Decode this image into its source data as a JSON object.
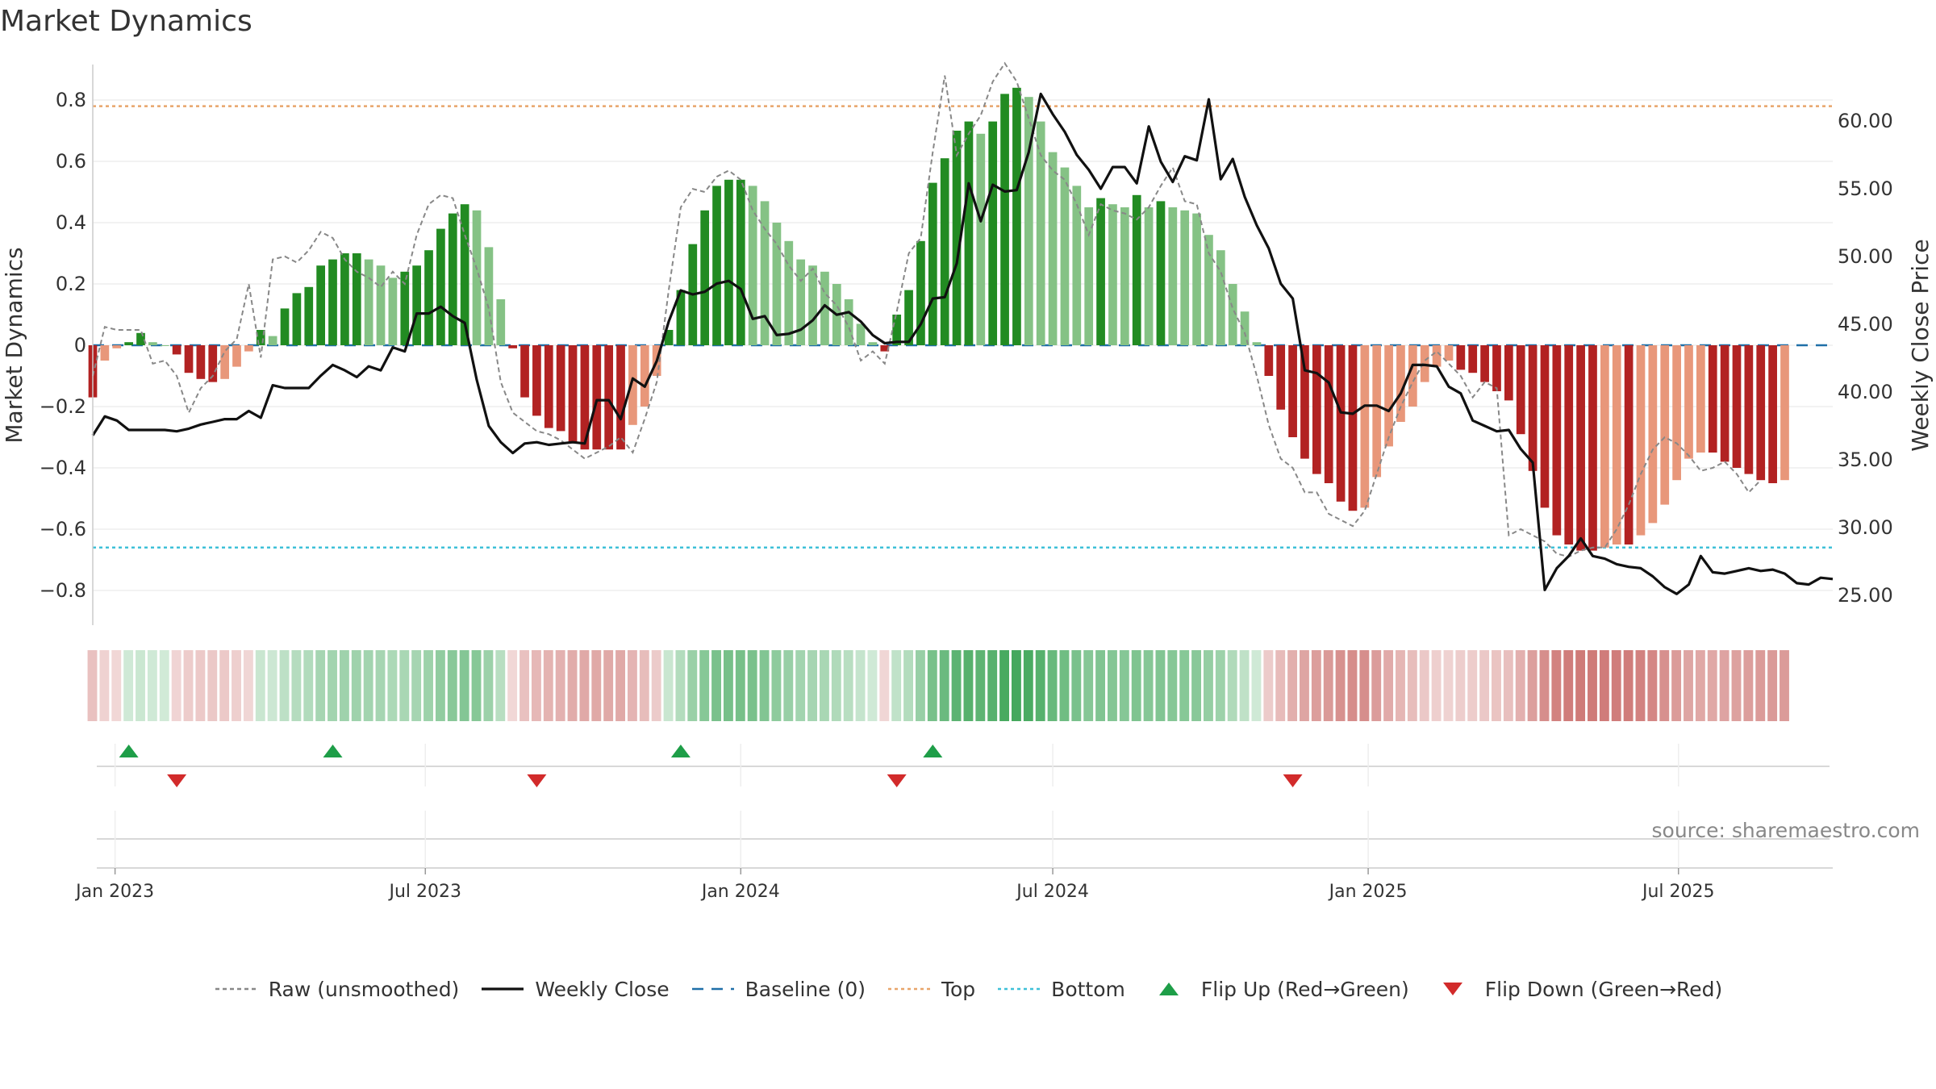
{
  "title": "Market Dynamics",
  "source": "source: sharemaestro.com",
  "colors": {
    "dark_green": "#228B22",
    "light_green": "#85C285",
    "dark_red": "#B22222",
    "light_red": "#E8977A",
    "raw": "#888888",
    "close": "#111111",
    "baseline": "#1F6FA8",
    "top": "#E8A56A",
    "bottom": "#3EC0D8",
    "flip_up": "#1E9E48",
    "flip_down": "#D22B2B"
  },
  "legend": [
    {
      "label": "Raw (unsmoothed)",
      "key": "raw"
    },
    {
      "label": "Weekly Close",
      "key": "close"
    },
    {
      "label": "Baseline (0)",
      "key": "baseline"
    },
    {
      "label": "Top",
      "key": "top"
    },
    {
      "label": "Bottom",
      "key": "bottom"
    },
    {
      "label": "Flip Up (Red→Green)",
      "key": "flip_up"
    },
    {
      "label": "Flip Down (Green→Red)",
      "key": "flip_down"
    }
  ],
  "chart_data": {
    "type": "bar",
    "title": "Market Dynamics",
    "ylabel": "Market Dynamics",
    "y2label": "Weekly Close Price",
    "ylim": [
      -0.9,
      0.92
    ],
    "y2lim": [
      22.0,
      63.0
    ],
    "yticks": [
      -0.8,
      -0.6,
      -0.4,
      -0.2,
      0,
      0.2,
      0.4,
      0.6,
      0.8
    ],
    "ytick_labels": [
      "−0.8",
      "−0.6",
      "−0.4",
      "−0.2",
      "0",
      "0.2",
      "0.4",
      "0.6",
      "0.8"
    ],
    "y2ticks": [
      25,
      30,
      35,
      40,
      45,
      50,
      55,
      60
    ],
    "y2tick_labels": [
      "25.00",
      "30.00",
      "35.00",
      "40.00",
      "45.00",
      "50.00",
      "55.00",
      "60.00"
    ],
    "start_date": "2022-12-19",
    "xlim": [
      "2022-12-19",
      "2025-09-29"
    ],
    "xticks": [
      "2023-01-01",
      "2023-07-01",
      "2024-01-01",
      "2024-07-01",
      "2025-01-01",
      "2025-07-01"
    ],
    "xtick_labels": [
      "Jan 2023",
      "Jul 2023",
      "Jan 2024",
      "Jul 2024",
      "Jan 2025",
      "Jul 2025"
    ],
    "top_line": 0.78,
    "bottom_line": -0.66,
    "baseline": 0,
    "grid": true,
    "legend_position": "bottom-center",
    "weeks": 146,
    "dynamics": [
      -0.17,
      -0.05,
      -0.01,
      0.01,
      0.04,
      0.01,
      0.0,
      -0.03,
      -0.09,
      -0.11,
      -0.12,
      -0.11,
      -0.07,
      -0.02,
      0.05,
      0.03,
      0.12,
      0.17,
      0.19,
      0.26,
      0.28,
      0.3,
      0.3,
      0.28,
      0.26,
      0.22,
      0.24,
      0.26,
      0.31,
      0.38,
      0.43,
      0.46,
      0.44,
      0.32,
      0.15,
      -0.01,
      -0.17,
      -0.23,
      -0.27,
      -0.28,
      -0.32,
      -0.34,
      -0.34,
      -0.34,
      -0.34,
      -0.26,
      -0.2,
      -0.1,
      0.05,
      0.18,
      0.33,
      0.44,
      0.52,
      0.54,
      0.54,
      0.52,
      0.47,
      0.4,
      0.34,
      0.28,
      0.26,
      0.24,
      0.2,
      0.15,
      0.07,
      0.01,
      -0.02,
      0.1,
      0.18,
      0.34,
      0.53,
      0.61,
      0.7,
      0.73,
      0.69,
      0.73,
      0.82,
      0.84,
      0.81,
      0.73,
      0.63,
      0.58,
      0.52,
      0.45,
      0.48,
      0.46,
      0.45,
      0.49,
      0.45,
      0.47,
      0.45,
      0.44,
      0.43,
      0.36,
      0.31,
      0.2,
      0.11,
      0.01,
      -0.1,
      -0.21,
      -0.3,
      -0.37,
      -0.42,
      -0.45,
      -0.51,
      -0.54,
      -0.53,
      -0.43,
      -0.33,
      -0.25,
      -0.2,
      -0.12,
      -0.07,
      -0.05,
      -0.08,
      -0.09,
      -0.12,
      -0.15,
      -0.18,
      -0.29,
      -0.41,
      -0.53,
      -0.62,
      -0.65,
      -0.67,
      -0.67,
      -0.66,
      -0.65,
      -0.65,
      -0.62,
      -0.58,
      -0.52,
      -0.44,
      -0.37,
      -0.35,
      -0.35,
      -0.38,
      -0.4,
      -0.42,
      -0.44,
      -0.45,
      -0.44
    ],
    "raw": [
      -0.1,
      0.06,
      0.05,
      0.05,
      0.05,
      -0.06,
      -0.05,
      -0.1,
      -0.22,
      -0.14,
      -0.1,
      -0.02,
      0.02,
      0.2,
      -0.04,
      0.28,
      0.29,
      0.27,
      0.31,
      0.37,
      0.35,
      0.28,
      0.24,
      0.22,
      0.19,
      0.24,
      0.2,
      0.36,
      0.46,
      0.49,
      0.48,
      0.36,
      0.25,
      0.12,
      -0.12,
      -0.22,
      -0.25,
      -0.28,
      -0.29,
      -0.31,
      -0.34,
      -0.37,
      -0.35,
      -0.33,
      -0.3,
      -0.35,
      -0.24,
      -0.12,
      0.18,
      0.45,
      0.51,
      0.5,
      0.55,
      0.57,
      0.54,
      0.44,
      0.38,
      0.33,
      0.26,
      0.21,
      0.25,
      0.17,
      0.13,
      0.06,
      -0.05,
      -0.02,
      -0.06,
      0.11,
      0.3,
      0.35,
      0.63,
      0.88,
      0.62,
      0.69,
      0.75,
      0.86,
      0.92,
      0.86,
      0.74,
      0.62,
      0.57,
      0.54,
      0.46,
      0.36,
      0.46,
      0.44,
      0.43,
      0.41,
      0.45,
      0.52,
      0.58,
      0.47,
      0.46,
      0.3,
      0.24,
      0.12,
      0.04,
      -0.1,
      -0.26,
      -0.37,
      -0.4,
      -0.48,
      -0.48,
      -0.55,
      -0.57,
      -0.59,
      -0.54,
      -0.42,
      -0.3,
      -0.2,
      -0.12,
      -0.05,
      -0.02,
      -0.06,
      -0.1,
      -0.17,
      -0.12,
      -0.14,
      -0.62,
      -0.6,
      -0.62,
      -0.64,
      -0.68,
      -0.69,
      -0.67,
      -0.66,
      -0.66,
      -0.6,
      -0.52,
      -0.42,
      -0.34,
      -0.3,
      -0.32,
      -0.36,
      -0.41,
      -0.4,
      -0.38,
      -0.42,
      -0.48,
      -0.44
    ],
    "close": [
      36.8,
      38.2,
      37.9,
      37.2,
      37.2,
      37.2,
      37.2,
      37.1,
      37.3,
      37.6,
      37.8,
      38.0,
      38.0,
      38.6,
      38.1,
      40.5,
      40.3,
      40.3,
      40.3,
      41.2,
      42.0,
      41.6,
      41.1,
      41.9,
      41.6,
      43.3,
      43.0,
      45.8,
      45.8,
      46.3,
      45.6,
      45.1,
      40.9,
      37.5,
      36.3,
      35.5,
      36.2,
      36.3,
      36.1,
      36.2,
      36.3,
      36.2,
      39.4,
      39.4,
      38.0,
      41.0,
      40.4,
      42.3,
      45.2,
      47.5,
      47.2,
      47.4,
      48.0,
      48.2,
      47.6,
      45.4,
      45.6,
      44.2,
      44.3,
      44.6,
      45.3,
      46.4,
      45.7,
      45.9,
      45.2,
      44.2,
      43.6,
      43.7,
      43.7,
      45.0,
      46.9,
      47.0,
      49.5,
      55.4,
      52.6,
      55.3,
      54.8,
      54.9,
      57.7,
      62.0,
      60.5,
      59.2,
      57.5,
      56.4,
      55.0,
      56.6,
      56.6,
      55.4,
      59.6,
      57.0,
      55.5,
      57.4,
      57.1,
      61.6,
      55.7,
      57.2,
      54.4,
      52.3,
      50.6,
      48.0,
      46.9,
      41.6,
      41.4,
      40.7,
      38.5,
      38.4,
      39.0,
      39.0,
      38.6,
      39.9,
      42.0,
      42.0,
      41.9,
      40.4,
      39.9,
      37.9,
      37.5,
      37.1,
      37.2,
      35.8,
      34.8,
      25.4,
      27.0,
      27.9,
      29.2,
      27.9,
      27.7,
      27.3,
      27.1,
      27.0,
      26.4,
      25.6,
      25.1,
      25.8,
      27.9,
      26.7,
      26.6,
      26.8,
      27.0,
      26.8,
      26.9,
      26.6,
      25.9,
      25.8,
      26.3,
      26.2
    ],
    "flip_up": [
      "2023-01-09",
      "2023-05-08",
      "2023-11-27",
      "2024-04-22"
    ],
    "flip_down": [
      "2023-02-06",
      "2023-09-04",
      "2024-04-01",
      "2024-11-18"
    ]
  }
}
